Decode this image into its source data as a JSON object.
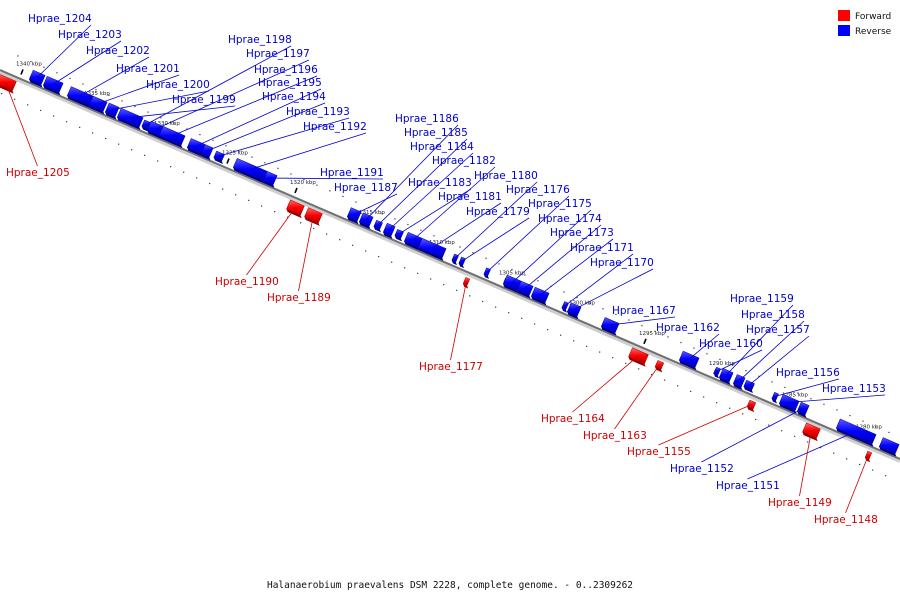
{
  "legend": [
    {
      "label": "Forward",
      "color": "#ff0000"
    },
    {
      "label": "Reverse",
      "color": "#0000ff"
    }
  ],
  "caption": "Halanaerobium praevalens DSM 2228, complete genome. - 0..2309262",
  "axis_ticks": [
    "1340 kbp",
    "1335 kbp",
    "1330 kbp",
    "1325 kbp",
    "1320 kbp",
    "1315 kbp",
    "1310 kbp",
    "1305 kbp",
    "1300 kbp",
    "1295 kbp",
    "1290 kbp",
    "1285 kbp",
    "1280 kbp"
  ],
  "genes": [
    {
      "name": "Hprae_1205",
      "strand": "forward"
    },
    {
      "name": "Hprae_1204",
      "strand": "reverse"
    },
    {
      "name": "Hprae_1203",
      "strand": "reverse"
    },
    {
      "name": "Hprae_1202",
      "strand": "reverse"
    },
    {
      "name": "Hprae_1201",
      "strand": "reverse"
    },
    {
      "name": "Hprae_1200",
      "strand": "reverse"
    },
    {
      "name": "Hprae_1199",
      "strand": "reverse"
    },
    {
      "name": "Hprae_1198",
      "strand": "reverse"
    },
    {
      "name": "Hprae_1197",
      "strand": "reverse"
    },
    {
      "name": "Hprae_1196",
      "strand": "reverse"
    },
    {
      "name": "Hprae_1195",
      "strand": "reverse"
    },
    {
      "name": "Hprae_1194",
      "strand": "reverse"
    },
    {
      "name": "Hprae_1193",
      "strand": "reverse"
    },
    {
      "name": "Hprae_1192",
      "strand": "reverse"
    },
    {
      "name": "Hprae_1191",
      "strand": "reverse"
    },
    {
      "name": "Hprae_1190",
      "strand": "forward"
    },
    {
      "name": "Hprae_1189",
      "strand": "forward"
    },
    {
      "name": "Hprae_1187",
      "strand": "reverse"
    },
    {
      "name": "Hprae_1186",
      "strand": "reverse"
    },
    {
      "name": "Hprae_1185",
      "strand": "reverse"
    },
    {
      "name": "Hprae_1184",
      "strand": "reverse"
    },
    {
      "name": "Hprae_1183",
      "strand": "reverse"
    },
    {
      "name": "Hprae_1182",
      "strand": "reverse"
    },
    {
      "name": "Hprae_1181",
      "strand": "reverse"
    },
    {
      "name": "Hprae_1180",
      "strand": "reverse"
    },
    {
      "name": "Hprae_1179",
      "strand": "reverse"
    },
    {
      "name": "Hprae_1177",
      "strand": "forward"
    },
    {
      "name": "Hprae_1176",
      "strand": "reverse"
    },
    {
      "name": "Hprae_1175",
      "strand": "reverse"
    },
    {
      "name": "Hprae_1174",
      "strand": "reverse"
    },
    {
      "name": "Hprae_1173",
      "strand": "reverse"
    },
    {
      "name": "Hprae_1171",
      "strand": "reverse"
    },
    {
      "name": "Hprae_1170",
      "strand": "reverse"
    },
    {
      "name": "Hprae_1167",
      "strand": "reverse"
    },
    {
      "name": "Hprae_1164",
      "strand": "forward"
    },
    {
      "name": "Hprae_1163",
      "strand": "forward"
    },
    {
      "name": "Hprae_1162",
      "strand": "reverse"
    },
    {
      "name": "Hprae_1160",
      "strand": "reverse"
    },
    {
      "name": "Hprae_1159",
      "strand": "reverse"
    },
    {
      "name": "Hprae_1158",
      "strand": "reverse"
    },
    {
      "name": "Hprae_1157",
      "strand": "reverse"
    },
    {
      "name": "Hprae_1156",
      "strand": "reverse"
    },
    {
      "name": "Hprae_1155",
      "strand": "forward"
    },
    {
      "name": "Hprae_1153",
      "strand": "reverse"
    },
    {
      "name": "Hprae_1152",
      "strand": "reverse"
    },
    {
      "name": "Hprae_1151",
      "strand": "reverse"
    },
    {
      "name": "Hprae_1149",
      "strand": "forward"
    },
    {
      "name": "Hprae_1148",
      "strand": "forward"
    }
  ]
}
